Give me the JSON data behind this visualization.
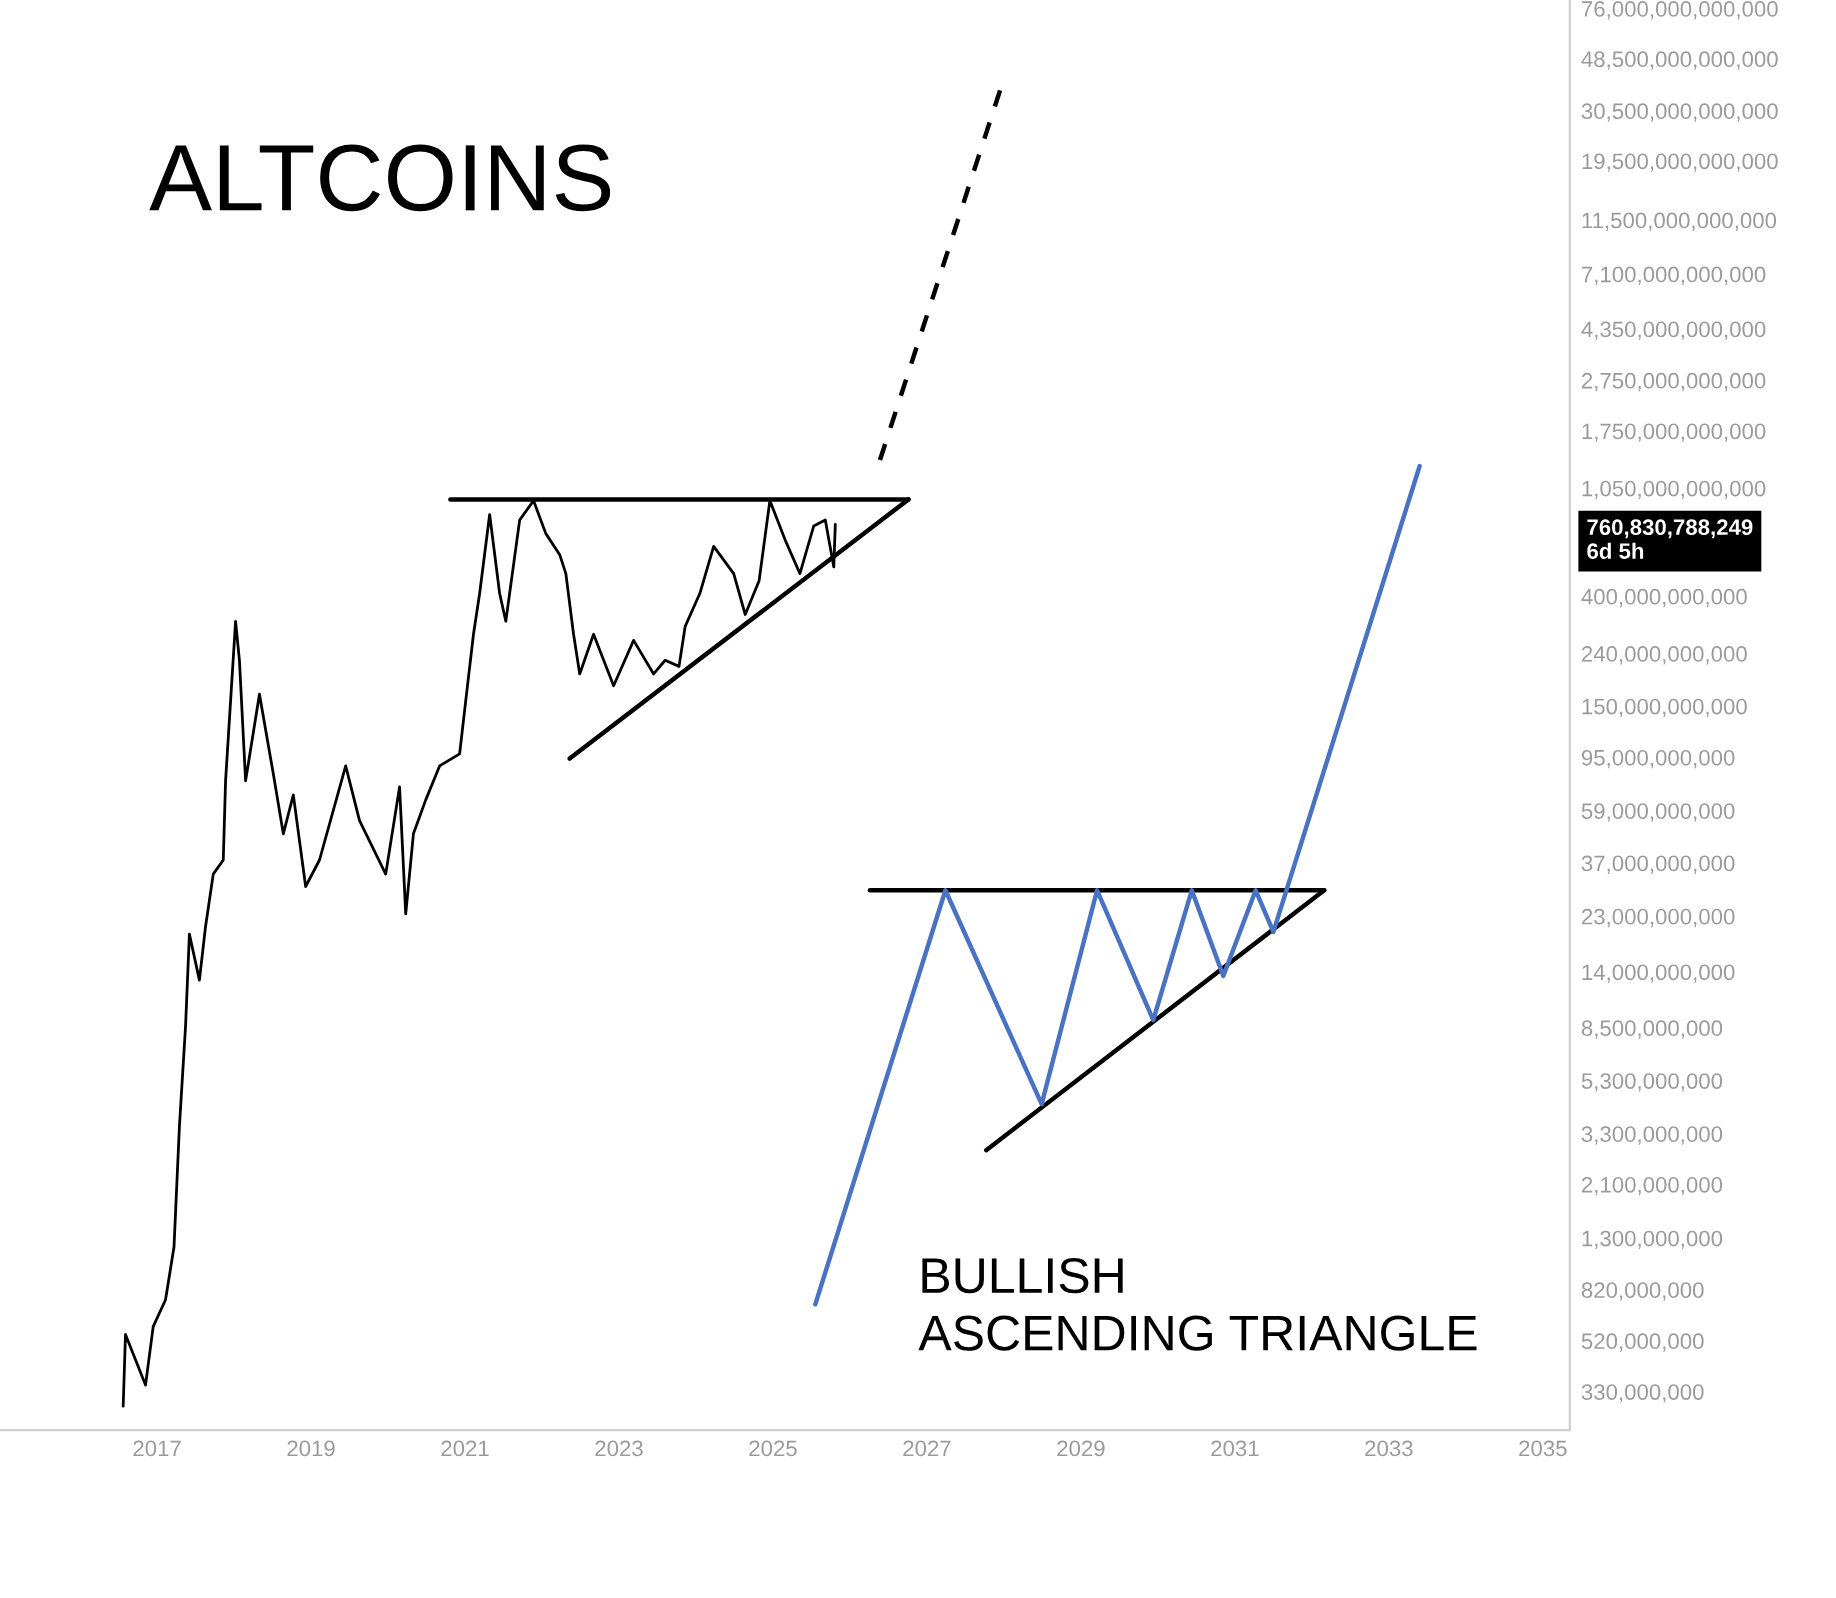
{
  "chart_data": {
    "type": "line",
    "title": "ALTCOINS",
    "log": "y",
    "grid": false,
    "marker": "none",
    "xlim": [
      2014.96,
      2035.35
    ],
    "ylim": [
      234000000,
      82000000000000
    ],
    "xticks": [
      2017,
      2019,
      2021,
      2023,
      2025,
      2027,
      2029,
      2031,
      2033,
      2035
    ],
    "yticks": [
      {
        "value": 330000000,
        "label": "330,000,000"
      },
      {
        "value": 520000000,
        "label": "520,000,000"
      },
      {
        "value": 820000000,
        "label": "820,000,000"
      },
      {
        "value": 1300000000,
        "label": "1,300,000,000"
      },
      {
        "value": 2100000000,
        "label": "2,100,000,000"
      },
      {
        "value": 3300000000,
        "label": "3,300,000,000"
      },
      {
        "value": 5300000000,
        "label": "5,300,000,000"
      },
      {
        "value": 8500000000,
        "label": "8,500,000,000"
      },
      {
        "value": 14000000000,
        "label": "14,000,000,000"
      },
      {
        "value": 23000000000,
        "label": "23,000,000,000"
      },
      {
        "value": 37000000000,
        "label": "37,000,000,000"
      },
      {
        "value": 59000000000,
        "label": "59,000,000,000"
      },
      {
        "value": 95000000000,
        "label": "95,000,000,000"
      },
      {
        "value": 150000000000,
        "label": "150,000,000,000"
      },
      {
        "value": 240000000000,
        "label": "240,000,000,000"
      },
      {
        "value": 400000000000,
        "label": "400,000,000,000"
      },
      {
        "value": 1050000000000,
        "label": "1,050,000,000,000"
      },
      {
        "value": 1750000000000,
        "label": "1,750,000,000,000"
      },
      {
        "value": 2750000000000,
        "label": "2,750,000,000,000"
      },
      {
        "value": 4350000000000,
        "label": "4,350,000,000,000"
      },
      {
        "value": 7100000000000,
        "label": "7,100,000,000,000"
      },
      {
        "value": 11500000000000,
        "label": "11,500,000,000,000"
      },
      {
        "value": 19500000000000,
        "label": "19,500,000,000,000"
      },
      {
        "value": 30500000000000,
        "label": "30,500,000,000,000"
      },
      {
        "value": 48500000000000,
        "label": "48,500,000,000,000"
      },
      {
        "value": 76000000000000,
        "label": "76,000,000,000,000"
      }
    ],
    "annotations": [
      "760,830,788,249\n6d 5h",
      "BULLISH\nASCENDING TRIANGLE"
    ],
    "series": [
      {
        "color": "#000000",
        "line_style": "solid",
        "x": [
          2016.56,
          2016.59,
          2016.85,
          2016.95,
          2017.11,
          2017.22,
          2017.29,
          2017.37,
          2017.42,
          2017.55,
          2017.63,
          2017.73,
          2017.86,
          2017.89,
          2018.02,
          2018.07,
          2018.15,
          2018.33,
          2018.51,
          2018.64,
          2018.77,
          2018.93,
          2019.11,
          2019.45,
          2019.63,
          2019.97,
          2020.15,
          2020.23,
          2020.33,
          2020.49,
          2020.67,
          2020.93,
          2021.01,
          2021.11,
          2021.19,
          2021.32,
          2021.45,
          2021.53,
          2021.71,
          2021.89,
          2022.05,
          2022.23,
          2022.31,
          2022.41,
          2022.49,
          2022.67,
          2022.93,
          2023.19,
          2023.45,
          2023.6,
          2023.78,
          2023.86,
          2024.05,
          2024.23,
          2024.49,
          2024.64,
          2024.82,
          2024.96,
          2025.16,
          2025.35,
          2025.53,
          2025.68,
          2025.79,
          2025.81
        ],
        "values": [
          290000000,
          550000000,
          350000000,
          590000000,
          750000000,
          1200000000,
          3500000000,
          8600000000,
          19600000000,
          13000000000,
          21000000000,
          33500000000,
          38000000000,
          77000000000,
          320000000000,
          226000000000,
          77000000000,
          167000000000,
          82000000000,
          48000000000,
          68000000000,
          30000000000,
          38000000000,
          88000000000,
          54000000000,
          33500000000,
          73000000000,
          23500000000,
          48000000000,
          65000000000,
          88000000000,
          98000000000,
          158000000000,
          285000000000,
          410000000000,
          830000000000,
          410000000000,
          320000000000,
          790000000000,
          940000000000,
          700000000000,
          580000000000,
          490000000000,
          285000000000,
          200000000000,
          285000000000,
          180000000000,
          270000000000,
          200000000000,
          226000000000,
          214000000000,
          306000000000,
          410000000000,
          625000000000,
          490000000000,
          340000000000,
          460000000000,
          940000000000,
          660000000000,
          490000000000,
          750000000000,
          790000000000,
          520000000000,
          760830788249
        ]
      },
      {
        "color": "#000000",
        "line_style": "solid",
        "x": [
          2020.81,
          2026.76
        ],
        "values": [
          950000000000,
          950000000000
        ]
      },
      {
        "color": "#000000",
        "line_style": "solid",
        "x": [
          2022.36,
          2026.76
        ],
        "values": [
          94000000000,
          950000000000
        ]
      },
      {
        "color": "#000000",
        "line_style": "dashed",
        "x": [
          2026.39,
          2027.95
        ],
        "values": [
          1350000000000,
          36600000000000
        ]
      },
      {
        "color": "#000000",
        "line_style": "solid",
        "x": [
          2026.26,
          2032.16
        ],
        "values": [
          29000000000,
          29000000000
        ]
      },
      {
        "color": "#000000",
        "line_style": "solid",
        "x": [
          2027.77,
          2032.16
        ],
        "values": [
          2850000000,
          29000000000
        ]
      },
      {
        "color": "#4a72c4",
        "line_style": "solid",
        "x": [
          2025.55,
          2027.24,
          2028.49,
          2029.21,
          2029.94,
          2030.44,
          2030.85,
          2031.27,
          2031.5,
          2033.4
        ],
        "values": [
          720000000,
          29000000000,
          4300000000,
          29000000000,
          9100000000,
          29000000000,
          13500000000,
          29000000000,
          20000000000,
          1280000000000
        ]
      }
    ]
  }
}
